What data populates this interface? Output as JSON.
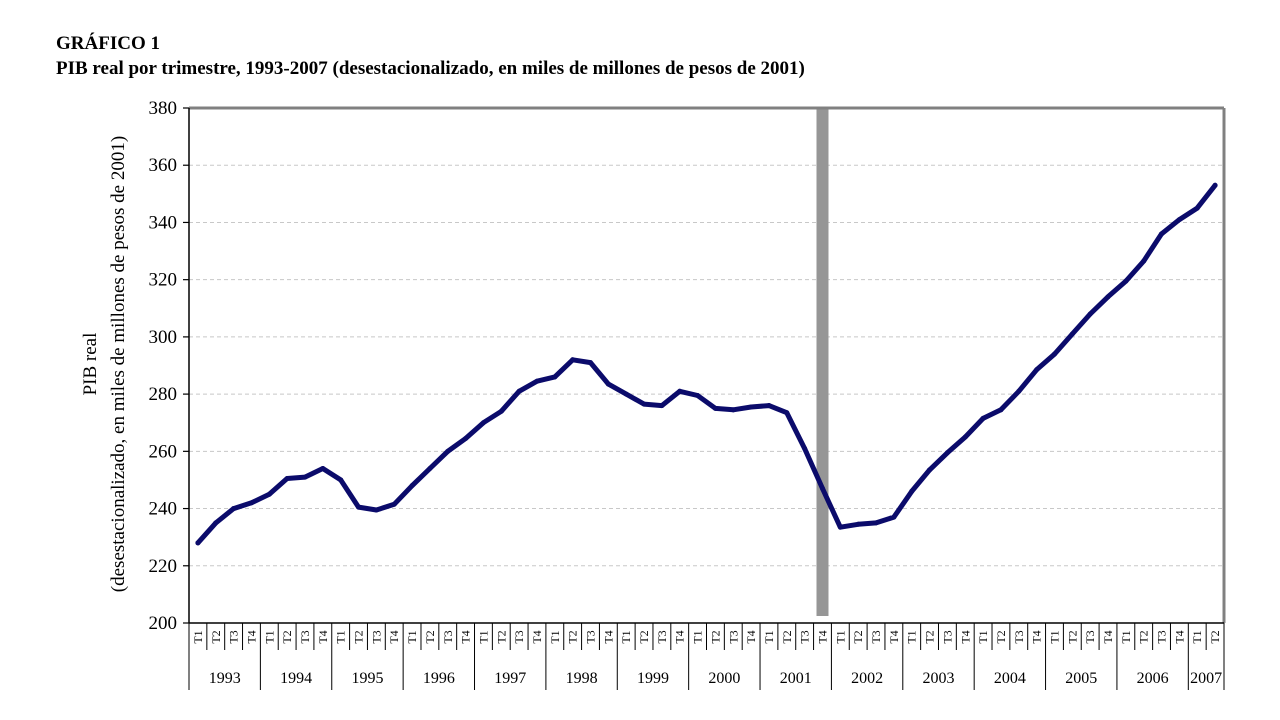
{
  "figure": {
    "label": "GRÁFICO 1",
    "title": "PIB real por trimestre, 1993-2007 (desestacionalizado, en miles de millones de pesos de 2001)"
  },
  "colors": {
    "series": "#0b0b6b",
    "marker": "#969696",
    "frame": "#808080",
    "grid": "#c8c8c8"
  },
  "chart_data": {
    "type": "line",
    "title": "",
    "xlabel": "",
    "ylabel_lines": [
      "PIB real",
      "(desestacionalizado, en miles de millones de pesos de 2001)"
    ],
    "ylim": [
      200,
      380
    ],
    "yticks": [
      200,
      220,
      240,
      260,
      280,
      300,
      320,
      340,
      360,
      380
    ],
    "grid": "horizontal dashed",
    "legend": "none",
    "vertical_marker": "2001 T4",
    "years": [
      {
        "label": "1993",
        "quarters": 4
      },
      {
        "label": "1994",
        "quarters": 4
      },
      {
        "label": "1995",
        "quarters": 4
      },
      {
        "label": "1996",
        "quarters": 4
      },
      {
        "label": "1997",
        "quarters": 4
      },
      {
        "label": "1998",
        "quarters": 4
      },
      {
        "label": "1999",
        "quarters": 4
      },
      {
        "label": "2000",
        "quarters": 4
      },
      {
        "label": "2001",
        "quarters": 4
      },
      {
        "label": "2002",
        "quarters": 4
      },
      {
        "label": "2003",
        "quarters": 4
      },
      {
        "label": "2004",
        "quarters": 4
      },
      {
        "label": "2005",
        "quarters": 4
      },
      {
        "label": "2006",
        "quarters": 4
      },
      {
        "label": "2007",
        "quarters": 2
      }
    ],
    "quarter_labels": [
      "T1",
      "T2",
      "T3",
      "T4"
    ],
    "series": [
      {
        "name": "",
        "values": [
          228,
          235,
          240,
          242,
          245,
          250.5,
          251,
          254,
          250,
          240.5,
          239.5,
          241.5,
          248,
          254,
          260,
          264.5,
          270,
          274,
          281,
          284.5,
          286,
          292,
          291,
          283.5,
          280,
          276.5,
          276,
          281,
          279.5,
          275,
          274.5,
          275.5,
          276,
          273.5,
          261,
          247,
          233.5,
          234.5,
          235,
          237,
          246,
          253.5,
          259.5,
          265,
          271.5,
          274.5,
          281,
          288.5,
          294,
          301,
          308,
          314,
          319.5,
          326.5,
          336,
          341,
          345,
          353
        ]
      }
    ]
  }
}
